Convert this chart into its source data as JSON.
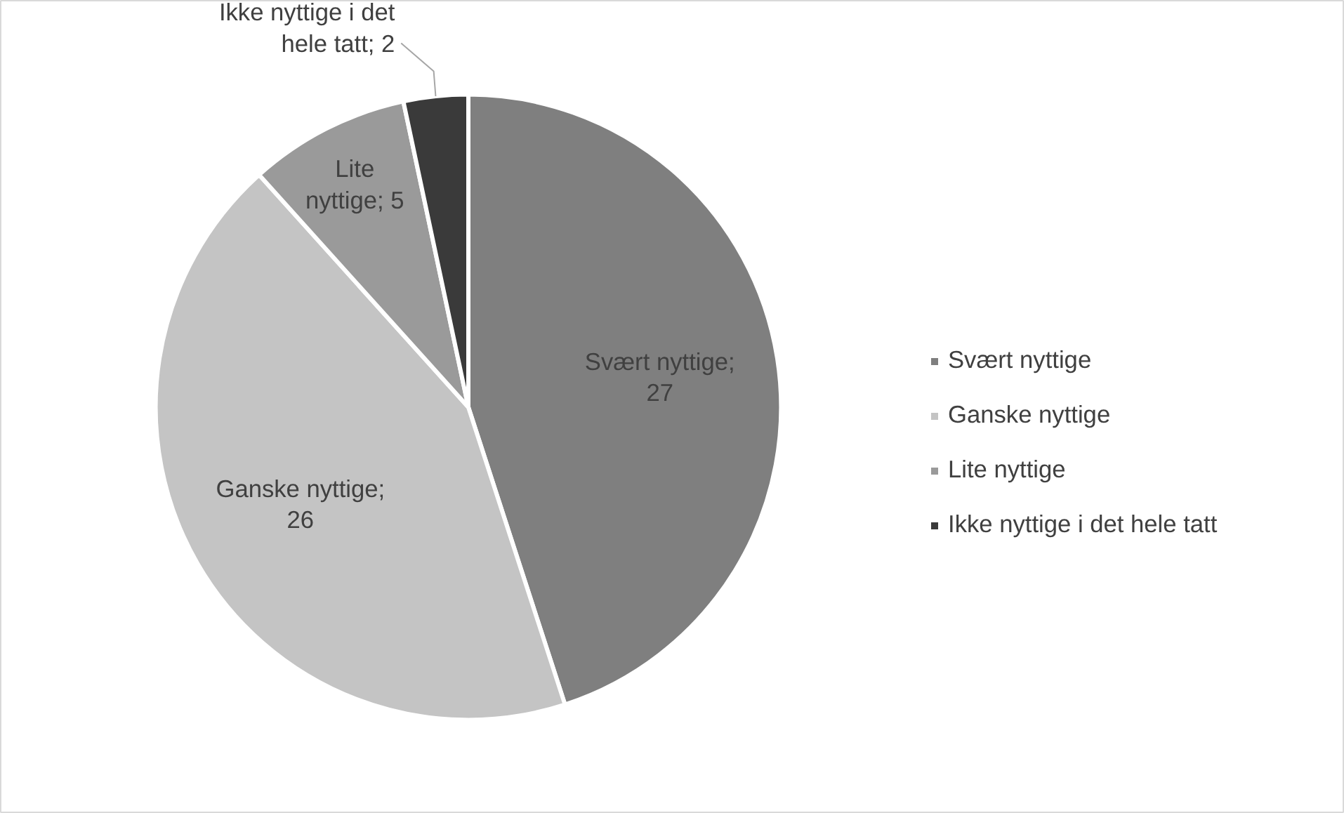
{
  "chart_data": {
    "type": "pie",
    "categories": [
      "Svært nyttige",
      "Ganske nyttige",
      "Lite nyttige",
      "Ikke nyttige i det hele tatt"
    ],
    "values": [
      27,
      26,
      5,
      2
    ],
    "colors": [
      "#7f7f7f",
      "#c4c4c4",
      "#9a9a9a",
      "#3a3a3a"
    ],
    "value_labels": [
      "Svært nyttige; 27",
      "Ganske nyttige; 26",
      "Lite nyttige; 5",
      "Ikke nyttige i det hele tatt; 2"
    ],
    "legend": "right"
  }
}
